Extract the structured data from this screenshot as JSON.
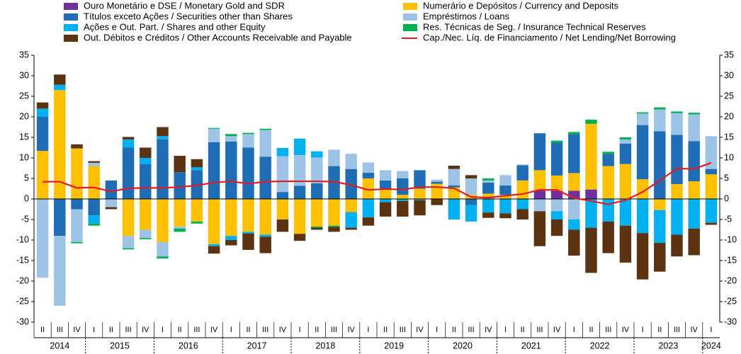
{
  "chart_data": {
    "type": "bar",
    "years": [
      "2014",
      "2015",
      "2016",
      "2017",
      "2018",
      "2019",
      "2020",
      "2021",
      "2022",
      "2023",
      "2024"
    ],
    "quarters": [
      [
        "II",
        "III",
        "IV"
      ],
      [
        "I",
        "II",
        "III",
        "IV"
      ],
      [
        "I",
        "II",
        "III",
        "IV"
      ],
      [
        "I",
        "II",
        "III",
        "IV"
      ],
      [
        "I",
        "II",
        "III",
        "IV"
      ],
      [
        "I",
        "II",
        "III",
        "IV"
      ],
      [
        "I",
        "II",
        "III",
        "IV"
      ],
      [
        "I",
        "II",
        "III",
        "IV"
      ],
      [
        "I",
        "II",
        "III",
        "IV"
      ],
      [
        "I",
        "II",
        "III",
        "IV"
      ],
      [
        "I"
      ]
    ],
    "ylim": [
      -30,
      35
    ],
    "yticks": [
      -30,
      -25,
      -20,
      -15,
      -10,
      -5,
      0,
      5,
      10,
      15,
      20,
      25,
      30,
      35
    ],
    "y2lim": [
      -30,
      35
    ],
    "series": [
      {
        "name": "Ouro Monetário e DSE / Monetary Gold and SDR",
        "type": "bar",
        "color": "#7030a0",
        "values": [
          0,
          0,
          0,
          0,
          0,
          0,
          0,
          0,
          0,
          0,
          0,
          0,
          0,
          0,
          0,
          0,
          0,
          0,
          0,
          0,
          0,
          0,
          0,
          0,
          0,
          0,
          0,
          0,
          0,
          2,
          2,
          2,
          2.3,
          0,
          0,
          0,
          0,
          0,
          0,
          0
        ]
      },
      {
        "name": "Numerário e Depósitos / Currency and Deposits",
        "type": "bar",
        "color": "#ffc000",
        "values": [
          11.7,
          26.5,
          12.3,
          8,
          0,
          -9,
          -7.5,
          -10.5,
          -6.7,
          -5.5,
          -11,
          -9,
          -8,
          -8.7,
          -5,
          -8.5,
          -6.7,
          -6.5,
          -3.2,
          5,
          2.5,
          1,
          2.5,
          3.7,
          2.8,
          1,
          1.3,
          1,
          4.5,
          5,
          3.7,
          4.3,
          16,
          8,
          8.5,
          4.8,
          -2.7,
          3.6,
          4.3,
          6
        ]
      },
      {
        "name": "Títulos exceto Ações / Securities other than Shares",
        "type": "bar",
        "color": "#1f6db5",
        "values": [
          8.3,
          -9,
          -2.5,
          -4,
          4.5,
          12.5,
          8.5,
          14.5,
          6.5,
          7,
          13.8,
          14,
          12.5,
          10.3,
          1.7,
          3.2,
          3.8,
          8,
          7.3,
          1.4,
          2,
          4,
          4.5,
          0.5,
          0.5,
          -1.5,
          2.7,
          2.3,
          3.7,
          9,
          8,
          9.5,
          0,
          3,
          5,
          13.2,
          16.5,
          12,
          9.8,
          1.3
        ]
      },
      {
        "name": "Empréstimos / Loans",
        "type": "bar",
        "color": "#9dc3e6",
        "values": [
          -19.2,
          -17,
          -8,
          0.8,
          -2,
          -3,
          -2,
          -3.5,
          -0.5,
          0,
          3.3,
          1.3,
          3.3,
          6.5,
          8.7,
          7.5,
          6.3,
          4,
          3.7,
          2.5,
          2.5,
          1.8,
          0,
          0.5,
          4,
          4,
          0.5,
          2.5,
          0.2,
          -3,
          -3,
          -5,
          0,
          0,
          1,
          2.8,
          5.3,
          5.3,
          6.5,
          8
        ]
      },
      {
        "name": "Ações e Out. Part. / Shares and other Equity",
        "type": "bar",
        "color": "#00b0f0",
        "values": [
          2,
          1.3,
          0,
          -2,
          0,
          2,
          1.5,
          0.8,
          0,
          0.7,
          -0.5,
          -1,
          -0.4,
          -0.5,
          2,
          4,
          1.5,
          0,
          -3.8,
          -4.5,
          -0.8,
          -0.5,
          -0.3,
          0,
          -5,
          -4,
          -3.3,
          -3.5,
          -2.5,
          0,
          -2,
          -2.5,
          -7,
          -5.5,
          -6.5,
          -8.3,
          -8,
          -8.7,
          -7.2,
          -5.8
        ]
      },
      {
        "name": "Res. Técnicas de Seg. / Insurance Technical Reserves",
        "type": "bar",
        "color": "#00b050",
        "values": [
          0,
          0,
          -0.3,
          -0.5,
          0,
          -0.3,
          -0.3,
          -0.5,
          -0.8,
          -0.5,
          0.2,
          0.5,
          0.3,
          0.3,
          0,
          0,
          -0.3,
          -0.3,
          0,
          0,
          0,
          0,
          0,
          0,
          0,
          0,
          0.5,
          0,
          0,
          0,
          0.5,
          0.5,
          1,
          0.5,
          0.5,
          0.3,
          0.5,
          0.4,
          0.4,
          0
        ]
      },
      {
        "name": "Out. Débitos e Créditos / Other Accounts Receivable and Payable",
        "type": "bar",
        "color": "#5c3310",
        "values": [
          1.5,
          2.5,
          1,
          0.4,
          -0.5,
          0.6,
          2.5,
          2.2,
          4,
          2,
          -1.8,
          -1.3,
          -4,
          -4,
          -3,
          -1.7,
          -0.5,
          -1.2,
          -0.5,
          -2,
          -3.5,
          -3.8,
          -3.7,
          -1.5,
          0.8,
          0.8,
          -1.3,
          -1.2,
          -2.5,
          -8.5,
          -4,
          -6.3,
          -11,
          -7.7,
          -9,
          -11.3,
          -7,
          -5.3,
          -6.5,
          -0.5
        ]
      },
      {
        "name": "Cap./Nec. Líq. de Financiamento / Net Lending/Net Borrowing",
        "type": "line",
        "color": "#e31b23",
        "values": [
          4.2,
          4.2,
          2.7,
          2.8,
          1.8,
          2.6,
          2.7,
          2.7,
          2.9,
          3.3,
          4,
          4.3,
          3.7,
          4.2,
          4.3,
          4.3,
          4.3,
          4.2,
          3.4,
          2.2,
          2.4,
          2.3,
          2.9,
          2.9,
          2.6,
          0.5,
          0.3,
          0.8,
          1.2,
          2.2,
          2.2,
          0.2,
          -0.5,
          -1.3,
          -0.3,
          1.7,
          4.5,
          7.4,
          7.3,
          8.8
        ]
      }
    ]
  }
}
